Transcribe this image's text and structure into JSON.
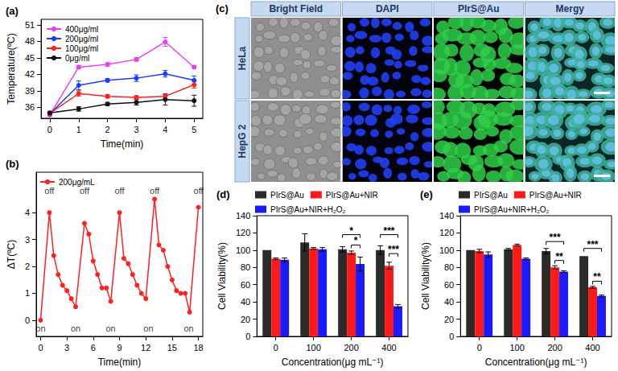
{
  "chart_data": [
    {
      "type": "line",
      "panel_label": "(a)",
      "x_label": "Time(min)",
      "y_label": "Temperature(ºC)",
      "x": [
        0,
        1,
        2,
        3,
        4,
        5
      ],
      "xlim": [
        -0.3,
        5.3
      ],
      "xticks": [
        0,
        1,
        2,
        3,
        4,
        5
      ],
      "ylim": [
        34,
        52
      ],
      "yticks": [
        36,
        39,
        42,
        45,
        48,
        51
      ],
      "grid": false,
      "legend": "upper left",
      "marker": "circle",
      "series": [
        {
          "name": "400μg/ml",
          "color": "#f03cf0",
          "values": [
            34.6,
            43.3,
            43.8,
            44.7,
            47.9,
            43.3
          ],
          "errors": [
            0.2,
            0.3,
            0.3,
            0.3,
            0.8,
            0.2
          ]
        },
        {
          "name": "200μg/ml",
          "color": "#1a3cff",
          "values": [
            34.8,
            40.0,
            40.9,
            41.3,
            42.1,
            40.9
          ],
          "errors": [
            0.2,
            0.8,
            0.3,
            0.6,
            0.6,
            0.8
          ]
        },
        {
          "name": "100μg/ml",
          "color": "#ff2020",
          "values": [
            34.9,
            38.5,
            38.0,
            37.8,
            38.0,
            40.1
          ],
          "errors": [
            0.2,
            0.5,
            0.3,
            0.3,
            0.4,
            0.6
          ]
        },
        {
          "name": "0μg/ml",
          "color": "#111111",
          "values": [
            35.0,
            35.7,
            36.6,
            36.9,
            37.4,
            37.2
          ],
          "errors": [
            0.2,
            0.4,
            0.3,
            0.5,
            1.0,
            1.0
          ]
        }
      ]
    },
    {
      "type": "line",
      "panel_label": "(b)",
      "x_label": "Time(min)",
      "y_label": "ΔT(ºC)",
      "x": [
        0,
        1,
        1.5,
        2,
        2.5,
        3,
        3.5,
        4,
        5,
        5.5,
        6,
        6.5,
        7,
        7.5,
        8,
        9,
        9.5,
        10,
        10.5,
        11,
        11.5,
        12,
        13,
        13.5,
        14,
        14.5,
        15,
        15.5,
        16,
        16.5,
        17,
        18
      ],
      "xlim": [
        -0.5,
        18.5
      ],
      "xticks": [
        0,
        3,
        6,
        9,
        12,
        15,
        18
      ],
      "ylim": [
        -0.6,
        5.5
      ],
      "yticks": [
        0,
        1,
        2,
        3,
        4
      ],
      "grid": false,
      "legend": "upper left",
      "marker": "circle",
      "series": [
        {
          "name": "200μg/mL",
          "color": "#ff2020",
          "values": [
            0,
            4.0,
            2.4,
            1.7,
            1.3,
            1.1,
            0.8,
            0.5,
            3.6,
            3.2,
            2.2,
            1.7,
            1.2,
            1.2,
            0.7,
            4.0,
            2.3,
            2.1,
            1.7,
            1.3,
            1.0,
            0.8,
            4.5,
            2.8,
            2.6,
            2.0,
            1.5,
            1.1,
            1.0,
            1.0,
            0.3,
            4.2
          ]
        }
      ],
      "annotations": [
        {
          "text": "on",
          "x": 0,
          "y": -0.3
        },
        {
          "text": "off",
          "x": 1,
          "y": 4.8
        },
        {
          "text": "on",
          "x": 4,
          "y": -0.3
        },
        {
          "text": "off",
          "x": 5,
          "y": 4.8
        },
        {
          "text": "on",
          "x": 8,
          "y": -0.3
        },
        {
          "text": "off",
          "x": 9,
          "y": 4.8
        },
        {
          "text": "on",
          "x": 12.3,
          "y": -0.3
        },
        {
          "text": "off",
          "x": 13,
          "y": 4.8
        },
        {
          "text": "on",
          "x": 16.9,
          "y": -0.3
        },
        {
          "text": "off",
          "x": 18,
          "y": 4.8
        }
      ]
    },
    {
      "type": "bar",
      "panel_label": "(d)",
      "x_label": "Concentration(μg mL⁻¹)",
      "y_label": "Cell Viability(%)",
      "categories": [
        "0",
        "100",
        "200",
        "400"
      ],
      "ylim": [
        0,
        140
      ],
      "yticks": [
        0,
        20,
        40,
        60,
        80,
        100,
        120,
        140
      ],
      "grid": false,
      "legend": "top",
      "series": [
        {
          "name": "PIrS@Au",
          "color": "#2b2b2b",
          "values": [
            100,
            109,
            101,
            100
          ],
          "errors": [
            0,
            10,
            3,
            5
          ]
        },
        {
          "name": "PIrS@Au+NIR",
          "color": "#ff1a1a",
          "values": [
            90,
            102,
            97,
            82
          ],
          "errors": [
            1,
            1,
            2,
            4
          ]
        },
        {
          "name": "PIrS@Au+NIR+H₂O₂",
          "color": "#1a1aff",
          "values": [
            89,
            101,
            84,
            35
          ],
          "errors": [
            2,
            2,
            8,
            2
          ]
        }
      ],
      "significance": [
        {
          "category": "200",
          "from": "PIrS@Au",
          "to": "PIrS@Au+NIR+H₂O₂",
          "y": 118,
          "label": "*"
        },
        {
          "category": "200",
          "from": "PIrS@Au+NIR",
          "to": "PIrS@Au+NIR+H₂O₂",
          "y": 106,
          "label": "*"
        },
        {
          "category": "400",
          "from": "PIrS@Au",
          "to": "PIrS@Au+NIR+H₂O₂",
          "y": 118,
          "label": "***"
        },
        {
          "category": "400",
          "from": "PIrS@Au+NIR",
          "to": "PIrS@Au+NIR+H₂O₂",
          "y": 96,
          "label": "***"
        }
      ]
    },
    {
      "type": "bar",
      "panel_label": "(e)",
      "x_label": "Concentration(μg mL⁻¹)",
      "y_label": "Cell Viability(%)",
      "categories": [
        "0",
        "100",
        "200",
        "400"
      ],
      "ylim": [
        0,
        140
      ],
      "yticks": [
        0,
        20,
        40,
        60,
        80,
        100,
        120,
        140
      ],
      "grid": false,
      "legend": "top",
      "series": [
        {
          "name": "PIrS@Au",
          "color": "#2b2b2b",
          "values": [
            100,
            101,
            99,
            93
          ],
          "errors": [
            0,
            1,
            3,
            0
          ]
        },
        {
          "name": "PIrS@Au+NIR",
          "color": "#ff1a1a",
          "values": [
            99,
            106,
            80,
            57
          ],
          "errors": [
            2,
            1,
            2,
            1
          ]
        },
        {
          "name": "PIrS@Au+NIR+H₂O₂",
          "color": "#1a1aff",
          "values": [
            95,
            90,
            75,
            47
          ],
          "errors": [
            3,
            1,
            1,
            1
          ]
        }
      ],
      "significance": [
        {
          "category": "200",
          "from": "PIrS@Au",
          "to": "PIrS@Au+NIR+H₂O₂",
          "y": 110,
          "label": "***"
        },
        {
          "category": "200",
          "from": "PIrS@Au+NIR",
          "to": "PIrS@Au+NIR+H₂O₂",
          "y": 88,
          "label": "**"
        },
        {
          "category": "400",
          "from": "PIrS@Au",
          "to": "PIrS@Au+NIR+H₂O₂",
          "y": 102,
          "label": "***"
        },
        {
          "category": "400",
          "from": "PIrS@Au+NIR",
          "to": "PIrS@Au+NIR+H₂O₂",
          "y": 64,
          "label": "**"
        }
      ]
    }
  ],
  "image_grid": {
    "panel_label": "(c)",
    "columns": [
      "Bright Field",
      "DAPI",
      "PIrS@Au",
      "Mergy"
    ],
    "rows": [
      "HeLa",
      "HepG 2"
    ]
  }
}
